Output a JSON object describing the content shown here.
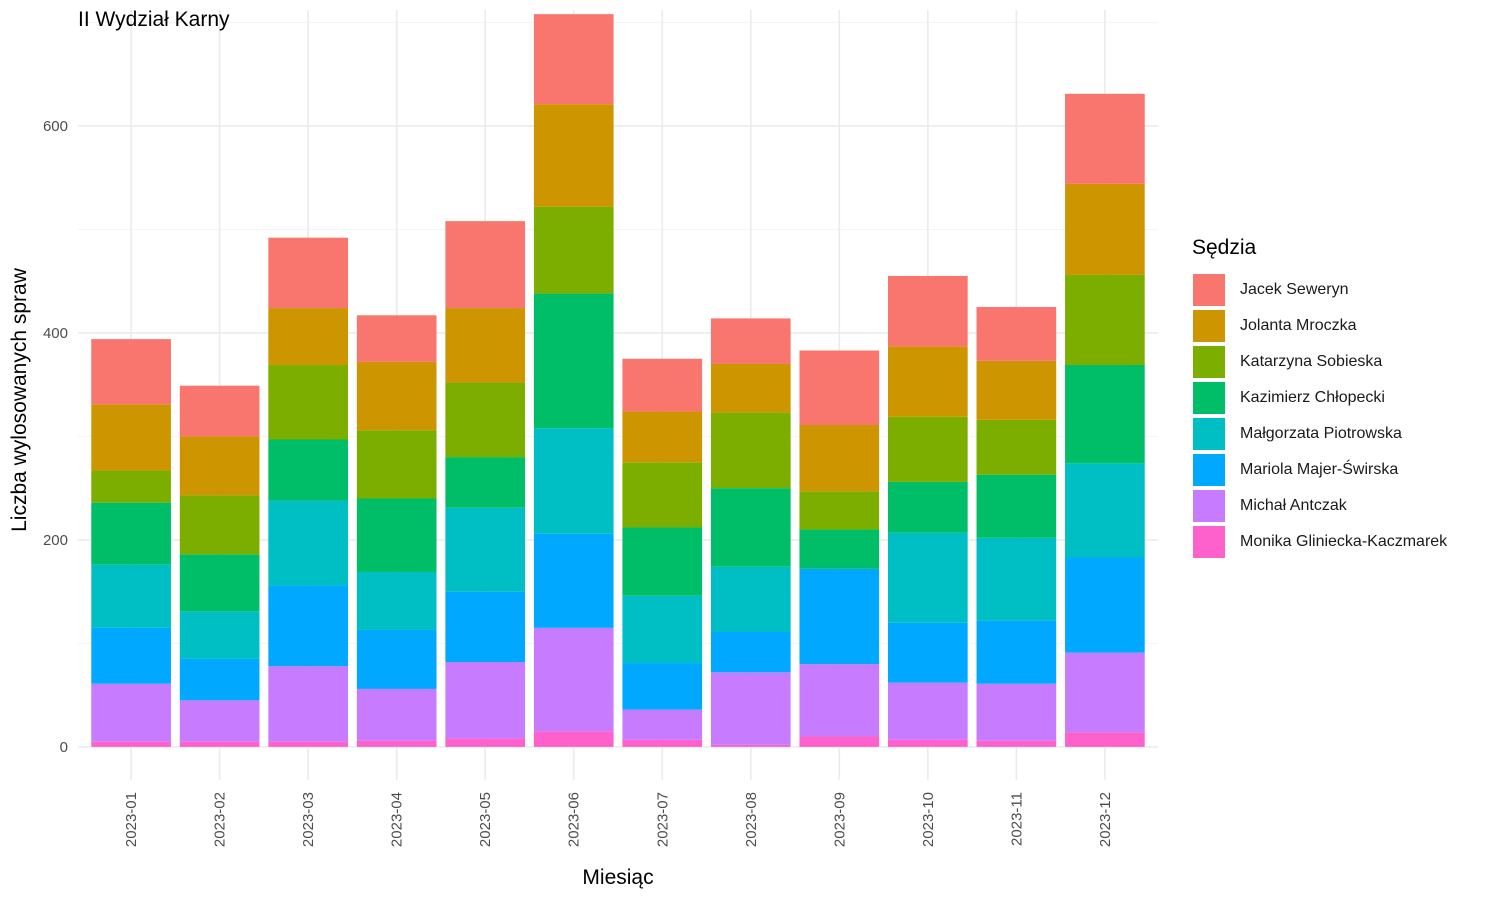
{
  "chart_data": {
    "type": "bar",
    "stacked": true,
    "title": "II Wydział Karny",
    "xlabel": "Miesiąc",
    "ylabel": "Liczba wylosowanych spraw",
    "legend_title": "Sędzia",
    "legend_position": "right",
    "grid": true,
    "ylim": [
      -32,
      712
    ],
    "yticks": [
      0,
      200,
      400,
      600
    ],
    "categories": [
      "2023-01",
      "2023-02",
      "2023-03",
      "2023-04",
      "2023-05",
      "2023-06",
      "2023-07",
      "2023-08",
      "2023-09",
      "2023-10",
      "2023-11",
      "2023-12"
    ],
    "series": [
      {
        "name": "Jacek Seweryn",
        "color": "#F8766D",
        "values": [
          63,
          49,
          68,
          45,
          84,
          87,
          51,
          44,
          72,
          68,
          52,
          87
        ]
      },
      {
        "name": "Jolanta Mroczka",
        "color": "#CD9600",
        "values": [
          64,
          57,
          55,
          66,
          72,
          99,
          49,
          47,
          64,
          68,
          57,
          88
        ]
      },
      {
        "name": "Katarzyna Sobieska",
        "color": "#7CAE00",
        "values": [
          31,
          57,
          72,
          66,
          72,
          84,
          63,
          73,
          37,
          63,
          53,
          87
        ]
      },
      {
        "name": "Kazimierz Chłopecki",
        "color": "#00BE67",
        "values": [
          60,
          55,
          59,
          71,
          49,
          130,
          66,
          76,
          38,
          49,
          61,
          95
        ]
      },
      {
        "name": "Małgorzata Piotrowska",
        "color": "#00BFC4",
        "values": [
          61,
          46,
          82,
          56,
          81,
          102,
          65,
          63,
          0,
          87,
          80,
          91
        ]
      },
      {
        "name": "Mariola Majer-Świrska",
        "color": "#00A9FF",
        "values": [
          54,
          40,
          78,
          57,
          68,
          91,
          45,
          39,
          92,
          58,
          61,
          92
        ]
      },
      {
        "name": "Michał Antczak",
        "color": "#C77CFF",
        "values": [
          56,
          40,
          73,
          50,
          74,
          100,
          29,
          70,
          70,
          55,
          55,
          77
        ]
      },
      {
        "name": "Monika Gliniecka-Kaczmarek",
        "color": "#FF61CC",
        "values": [
          5,
          5,
          5,
          6,
          8,
          15,
          7,
          2,
          10,
          7,
          6,
          14
        ]
      }
    ]
  }
}
